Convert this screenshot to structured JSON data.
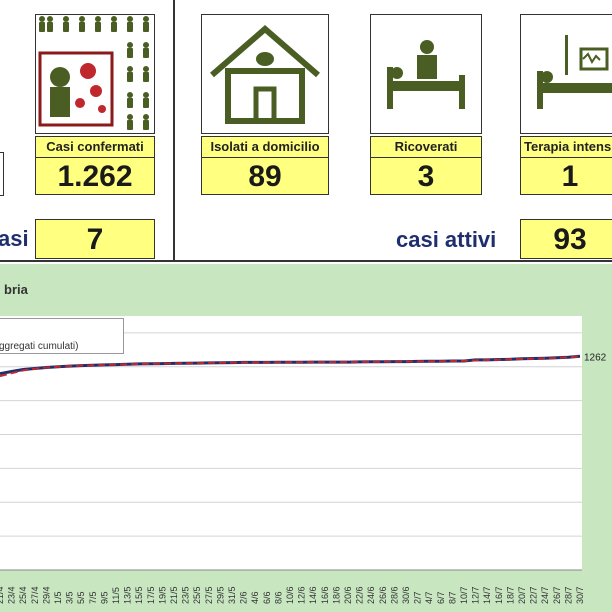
{
  "panels": {
    "confermati": {
      "label": "Casi confermati",
      "value": "1.262"
    },
    "isolati": {
      "label": "Isolati a domicilio",
      "value": "89"
    },
    "ricoverati": {
      "label": "Ricoverati",
      "value": "3"
    },
    "terapia": {
      "label": "Terapia intensiva",
      "value": "1"
    }
  },
  "nuovi": {
    "label": "asi",
    "value": "7"
  },
  "attivi": {
    "label": "casi attivi",
    "value": "93"
  },
  "colors": {
    "navy": "#1f2f6e",
    "red": "#c0282d",
    "label_fill": "#ffff80",
    "icon_green": "#4a5e23",
    "frame": "#c8e6c0"
  },
  "icons": [
    "crowd-virus-icon",
    "house-icon",
    "hospital-bed-icon",
    "icu-bed-icon"
  ],
  "chart_data": {
    "type": "line",
    "title": "bria",
    "legend": [
      "ggregati cumulati)"
    ],
    "legend_position": "top-left",
    "x": [
      "21/4",
      "23/4",
      "25/4",
      "27/4",
      "29/4",
      "1/5",
      "3/5",
      "5/5",
      "7/5",
      "9/5",
      "11/5",
      "13/5",
      "15/5",
      "17/5",
      "19/5",
      "21/5",
      "23/5",
      "25/5",
      "27/5",
      "29/5",
      "31/5",
      "2/6",
      "4/6",
      "6/6",
      "8/6",
      "10/6",
      "12/6",
      "14/6",
      "16/6",
      "18/6",
      "20/6",
      "22/6",
      "24/6",
      "26/6",
      "28/6",
      "30/6",
      "2/7",
      "4/7",
      "6/7",
      "8/7",
      "10/7",
      "12/7",
      "14/7",
      "16/7",
      "18/7",
      "20/7",
      "22/7",
      "24/7",
      "26/7",
      "28/7",
      "30/7"
    ],
    "series": [
      {
        "color": "#1f2f6e",
        "style": "solid",
        "values": [
          1159,
          1172,
          1184,
          1190,
          1196,
          1200,
          1204,
          1207,
          1209,
          1211,
          1213,
          1215,
          1217,
          1218,
          1219,
          1220,
          1221,
          1222,
          1223,
          1224,
          1225,
          1226,
          1226,
          1226,
          1227,
          1227,
          1227,
          1228,
          1228,
          1228,
          1228,
          1229,
          1230,
          1230,
          1231,
          1231,
          1232,
          1233,
          1233,
          1234,
          1234,
          1241,
          1241,
          1243,
          1244,
          1247,
          1249,
          1251,
          1253,
          1256,
          1262
        ]
      },
      {
        "color": "#c0282d",
        "style": "dashed",
        "values": [
          1145,
          1162,
          1179,
          1189,
          1195,
          1200,
          1204,
          1207,
          1209,
          1211,
          1213,
          1215,
          1217,
          1218,
          1219,
          1220,
          1221,
          1222,
          1223,
          1224,
          1225,
          1226,
          1226,
          1226,
          1227,
          1227,
          1227,
          1228,
          1228,
          1228,
          1228,
          1229,
          1230,
          1230,
          1231,
          1231,
          1232,
          1233,
          1233,
          1234,
          1235,
          1238,
          1240,
          1242,
          1244,
          1246,
          1248,
          1250,
          1252,
          1256,
          1262
        ]
      }
    ],
    "end_label": "1262",
    "ylim": [
      0,
      1500
    ],
    "grid": "horizontal"
  }
}
